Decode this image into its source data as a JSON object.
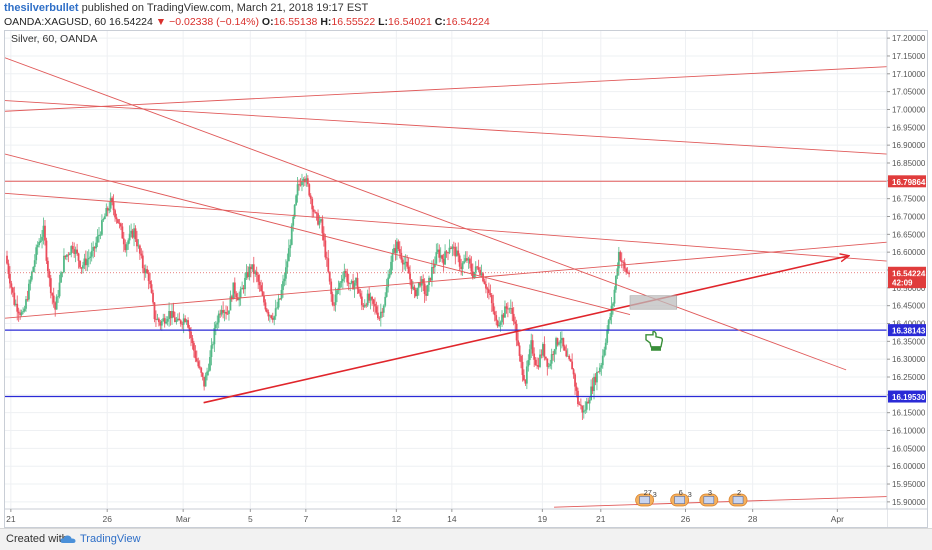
{
  "header": {
    "user": "thesilverbullet",
    "published": " published on TradingView.com, March 21, 2018 19:17 EST",
    "symbol": "OANDA:XAGUSD, 60",
    "last": "16.54224",
    "change": "−0.02338 (−0.14%)",
    "open_label": "O:",
    "open": "16.55138",
    "high_label": "H:",
    "high": "16.55522",
    "low_label": "L:",
    "low": "16.54021",
    "close_label": "C:",
    "close": "16.54224"
  },
  "footer": {
    "created_label": "Created with",
    "brand": "TradingView"
  },
  "colors": {
    "up": "#53b987",
    "down": "#eb4d5c",
    "trend": "#e05a5a",
    "support": "#2a2ad6",
    "bg": "#ffffff"
  },
  "chart_data": {
    "type": "candlestick",
    "title": "Silver, 60, OANDA",
    "ylim": [
      15.88,
      17.22
    ],
    "y_ticks": [
      "17.20000",
      "17.15000",
      "17.10000",
      "17.05000",
      "17.00000",
      "16.95000",
      "16.90000",
      "16.85000",
      "16.80000",
      "16.75000",
      "16.70000",
      "16.65000",
      "16.60000",
      "16.55000",
      "16.50000",
      "16.45000",
      "16.40000",
      "16.35000",
      "16.30000",
      "16.25000",
      "16.20000",
      "16.15000",
      "16.10000",
      "16.05000",
      "16.00000",
      "15.95000",
      "15.90000"
    ],
    "x_ticks": [
      {
        "label": "21",
        "t": 2
      },
      {
        "label": "26",
        "t": 35
      },
      {
        "label": "Mar",
        "t": 61
      },
      {
        "label": "5",
        "t": 84
      },
      {
        "label": "7",
        "t": 103
      },
      {
        "label": "12",
        "t": 134
      },
      {
        "label": "14",
        "t": 153
      },
      {
        "label": "19",
        "t": 184
      },
      {
        "label": "21",
        "t": 204
      },
      {
        "label": "26",
        "t": 233
      },
      {
        "label": "28",
        "t": 256
      },
      {
        "label": "Apr",
        "t": 285
      }
    ],
    "t_range": [
      0,
      302
    ],
    "price_labels": [
      {
        "value": "16.79864",
        "price": 16.79864,
        "color": "#e03c3c"
      },
      {
        "value": "16.54224",
        "price": 16.54224,
        "color": "#e03c3c"
      },
      {
        "value": "42:09",
        "price": 16.516,
        "color": "#e03c3c"
      },
      {
        "value": "16.38143",
        "price": 16.38143,
        "color": "#2a2ad6"
      },
      {
        "value": "16.19530",
        "price": 16.1953,
        "color": "#2a2ad6"
      }
    ],
    "horizontal_lines": [
      {
        "price": 16.79864,
        "color": "#e05a5a"
      },
      {
        "price": 16.38143,
        "color": "#2a2ad6"
      },
      {
        "price": 16.1953,
        "color": "#2a2ad6"
      }
    ],
    "trendlines": [
      {
        "from": [
          0,
          16.995
        ],
        "to": [
          302,
          17.12
        ],
        "color": "#e05a5a"
      },
      {
        "from": [
          0,
          17.025
        ],
        "to": [
          302,
          16.875
        ],
        "color": "#e05a5a"
      },
      {
        "from": [
          0,
          16.765
        ],
        "to": [
          302,
          16.575
        ],
        "color": "#e05a5a"
      },
      {
        "from": [
          0,
          17.145
        ],
        "to": [
          288,
          16.27
        ],
        "color": "#e05a5a"
      },
      {
        "from": [
          0,
          16.875
        ],
        "to": [
          214,
          16.425
        ],
        "color": "#e05a5a"
      },
      {
        "from": [
          0,
          16.415
        ],
        "to": [
          302,
          16.628
        ],
        "color": "#e05a5a"
      },
      {
        "from": [
          68,
          16.178
        ],
        "to": [
          289,
          16.59
        ],
        "color": "#e0252b",
        "width": 1.6,
        "arrow": true
      },
      {
        "from": [
          188,
          15.885
        ],
        "to": [
          302,
          15.915
        ],
        "color": "#e05a5a"
      }
    ],
    "box": {
      "t0": 214,
      "t1": 230,
      "p0": 16.44,
      "p1": 16.478
    },
    "events": [
      {
        "t": 219,
        "count": "27",
        "extra": "3"
      },
      {
        "t": 231,
        "count": "6",
        "extra": "3"
      },
      {
        "t": 241,
        "count": "3",
        "extra": ""
      },
      {
        "t": 251,
        "count": "2",
        "extra": ""
      }
    ],
    "series": [
      {
        "t": 0,
        "p": 16.59
      },
      {
        "t": 3,
        "p": 16.46
      },
      {
        "t": 6,
        "p": 16.42
      },
      {
        "t": 8,
        "p": 16.5
      },
      {
        "t": 11,
        "p": 16.62
      },
      {
        "t": 13,
        "p": 16.66
      },
      {
        "t": 15,
        "p": 16.52
      },
      {
        "t": 17,
        "p": 16.44
      },
      {
        "t": 20,
        "p": 16.58
      },
      {
        "t": 23,
        "p": 16.62
      },
      {
        "t": 26,
        "p": 16.56
      },
      {
        "t": 30,
        "p": 16.6
      },
      {
        "t": 34,
        "p": 16.7
      },
      {
        "t": 36,
        "p": 16.74
      },
      {
        "t": 38,
        "p": 16.7
      },
      {
        "t": 41,
        "p": 16.62
      },
      {
        "t": 44,
        "p": 16.66
      },
      {
        "t": 47,
        "p": 16.56
      },
      {
        "t": 49,
        "p": 16.53
      },
      {
        "t": 51,
        "p": 16.42
      },
      {
        "t": 53,
        "p": 16.4
      },
      {
        "t": 56,
        "p": 16.43
      },
      {
        "t": 59,
        "p": 16.4
      },
      {
        "t": 62,
        "p": 16.42
      },
      {
        "t": 64,
        "p": 16.34
      },
      {
        "t": 66,
        "p": 16.28
      },
      {
        "t": 68,
        "p": 16.23
      },
      {
        "t": 70,
        "p": 16.3
      },
      {
        "t": 72,
        "p": 16.4
      },
      {
        "t": 74,
        "p": 16.45
      },
      {
        "t": 76,
        "p": 16.43
      },
      {
        "t": 78,
        "p": 16.5
      },
      {
        "t": 80,
        "p": 16.47
      },
      {
        "t": 82,
        "p": 16.52
      },
      {
        "t": 84,
        "p": 16.56
      },
      {
        "t": 86,
        "p": 16.53
      },
      {
        "t": 88,
        "p": 16.47
      },
      {
        "t": 90,
        "p": 16.43
      },
      {
        "t": 92,
        "p": 16.42
      },
      {
        "t": 94,
        "p": 16.47
      },
      {
        "t": 96,
        "p": 16.55
      },
      {
        "t": 98,
        "p": 16.66
      },
      {
        "t": 100,
        "p": 16.78
      },
      {
        "t": 102,
        "p": 16.82
      },
      {
        "t": 104,
        "p": 16.77
      },
      {
        "t": 106,
        "p": 16.7
      },
      {
        "t": 108,
        "p": 16.68
      },
      {
        "t": 110,
        "p": 16.57
      },
      {
        "t": 112,
        "p": 16.45
      },
      {
        "t": 114,
        "p": 16.5
      },
      {
        "t": 116,
        "p": 16.55
      },
      {
        "t": 118,
        "p": 16.5
      },
      {
        "t": 120,
        "p": 16.52
      },
      {
        "t": 122,
        "p": 16.45
      },
      {
        "t": 124,
        "p": 16.47
      },
      {
        "t": 126,
        "p": 16.45
      },
      {
        "t": 128,
        "p": 16.42
      },
      {
        "t": 130,
        "p": 16.47
      },
      {
        "t": 132,
        "p": 16.58
      },
      {
        "t": 134,
        "p": 16.62
      },
      {
        "t": 136,
        "p": 16.58
      },
      {
        "t": 138,
        "p": 16.54
      },
      {
        "t": 140,
        "p": 16.48
      },
      {
        "t": 142,
        "p": 16.52
      },
      {
        "t": 144,
        "p": 16.48
      },
      {
        "t": 146,
        "p": 16.55
      },
      {
        "t": 148,
        "p": 16.6
      },
      {
        "t": 150,
        "p": 16.58
      },
      {
        "t": 152,
        "p": 16.62
      },
      {
        "t": 154,
        "p": 16.6
      },
      {
        "t": 156,
        "p": 16.56
      },
      {
        "t": 158,
        "p": 16.58
      },
      {
        "t": 160,
        "p": 16.54
      },
      {
        "t": 162,
        "p": 16.56
      },
      {
        "t": 164,
        "p": 16.52
      },
      {
        "t": 166,
        "p": 16.47
      },
      {
        "t": 168,
        "p": 16.4
      },
      {
        "t": 170,
        "p": 16.42
      },
      {
        "t": 172,
        "p": 16.45
      },
      {
        "t": 174,
        "p": 16.42
      },
      {
        "t": 176,
        "p": 16.3
      },
      {
        "t": 178,
        "p": 16.24
      },
      {
        "t": 180,
        "p": 16.34
      },
      {
        "t": 182,
        "p": 16.28
      },
      {
        "t": 184,
        "p": 16.33
      },
      {
        "t": 186,
        "p": 16.28
      },
      {
        "t": 188,
        "p": 16.34
      },
      {
        "t": 190,
        "p": 16.36
      },
      {
        "t": 192,
        "p": 16.3
      },
      {
        "t": 194,
        "p": 16.28
      },
      {
        "t": 196,
        "p": 16.18
      },
      {
        "t": 198,
        "p": 16.15
      },
      {
        "t": 200,
        "p": 16.2
      },
      {
        "t": 202,
        "p": 16.25
      },
      {
        "t": 204,
        "p": 16.29
      },
      {
        "t": 206,
        "p": 16.38
      },
      {
        "t": 208,
        "p": 16.46
      },
      {
        "t": 210,
        "p": 16.6
      },
      {
        "t": 212,
        "p": 16.55
      },
      {
        "t": 213,
        "p": 16.542
      }
    ]
  }
}
